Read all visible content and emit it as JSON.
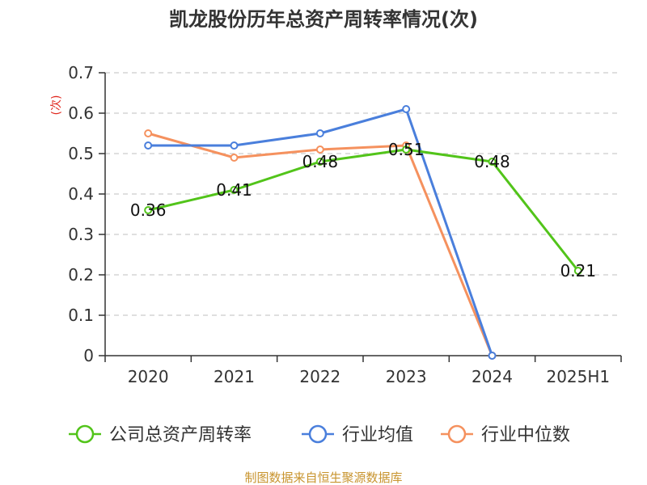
{
  "chart_data": {
    "type": "line",
    "title": "凯龙股份历年总资产周转率情况(次)",
    "ylabel": "(次)",
    "categories": [
      "2020",
      "2021",
      "2022",
      "2023",
      "2024",
      "2025H1"
    ],
    "ylim": [
      0,
      0.7
    ],
    "yticks": [
      "0",
      "0.1",
      "0.2",
      "0.3",
      "0.4",
      "0.5",
      "0.6",
      "0.7"
    ],
    "grid": true,
    "legend_position": "bottom",
    "series": [
      {
        "name": "公司总资产周转率",
        "color": "#52c41a",
        "values": [
          0.36,
          0.41,
          0.48,
          0.51,
          0.48,
          0.21
        ],
        "labels": [
          "0.36",
          "0.41",
          "0.48",
          "0.51",
          "0.48",
          "0.21"
        ]
      },
      {
        "name": "行业均值",
        "color": "#4a7fdc",
        "values": [
          0.52,
          0.52,
          0.55,
          0.61,
          0.0,
          null
        ]
      },
      {
        "name": "行业中位数",
        "color": "#f5915e",
        "values": [
          0.55,
          0.49,
          0.51,
          0.52,
          0.0,
          null
        ]
      }
    ]
  },
  "source": "制图数据来自恒生聚源数据库",
  "colors": {
    "axis": "#333333",
    "grid": "#cccccc",
    "unit": "#e0281f",
    "source": "#c8942e"
  }
}
